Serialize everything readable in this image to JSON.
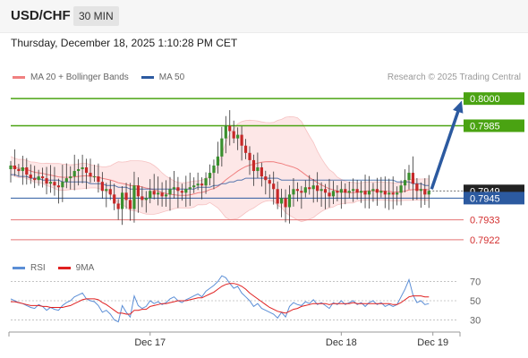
{
  "header": {
    "symbol": "USD/CHF",
    "timeframe": "30 MIN",
    "datetime": "Thursday, December 18, 2025 1:10:28 PM CET",
    "credit": "Research © 2025 Trading Central"
  },
  "legend": {
    "main": [
      {
        "name": "MA 20 + Bollinger Bands",
        "color": "#f08080"
      },
      {
        "name": "MA 50",
        "color": "#2c5aa0"
      }
    ],
    "rsi": [
      {
        "name": "RSI",
        "color": "#5b8ed6"
      },
      {
        "name": "9MA",
        "color": "#e02020"
      }
    ]
  },
  "colors": {
    "up": "#3a8f2e",
    "down": "#c62828",
    "target": "#4aa312",
    "pivot": "#2c5aa0",
    "support": "#e57373",
    "arrow": "#2c5aa0",
    "price_box": "#222222"
  },
  "chart_data": {
    "type": "candlestick",
    "ylim": [
      0.7917,
      0.8007
    ],
    "x_tick_labels": [
      {
        "label": "Dec 17",
        "index": 35
      },
      {
        "label": "Dec 18",
        "index": 83
      },
      {
        "label": "Dec 19",
        "index": 106
      }
    ],
    "levels": [
      {
        "value": 0.8,
        "label": "0.8000",
        "kind": "target"
      },
      {
        "value": 0.7985,
        "label": "0.7985",
        "kind": "target"
      },
      {
        "value": 0.7949,
        "label": "0.7949",
        "kind": "current"
      },
      {
        "value": 0.7945,
        "label": "0.7945",
        "kind": "pivot"
      },
      {
        "value": 0.7933,
        "label": "0.7933",
        "kind": "support"
      },
      {
        "value": 0.7922,
        "label": "0.7922",
        "kind": "support"
      }
    ],
    "forecast_arrow": {
      "from": 0.795,
      "to": 0.7999
    },
    "closes": [
      0.7963,
      0.7961,
      0.796,
      0.7962,
      0.7958,
      0.7956,
      0.7955,
      0.7957,
      0.7956,
      0.7953,
      0.7954,
      0.7952,
      0.7951,
      0.7954,
      0.7956,
      0.7957,
      0.796,
      0.7961,
      0.7962,
      0.7959,
      0.7957,
      0.7957,
      0.7954,
      0.7949,
      0.795,
      0.7947,
      0.7942,
      0.7939,
      0.7948,
      0.7944,
      0.7939,
      0.7952,
      0.7946,
      0.7944,
      0.7945,
      0.7949,
      0.7947,
      0.7948,
      0.7946,
      0.7947,
      0.795,
      0.7951,
      0.7949,
      0.7948,
      0.795,
      0.7951,
      0.7952,
      0.7953,
      0.7952,
      0.7956,
      0.7959,
      0.7963,
      0.7968,
      0.7978,
      0.7985,
      0.7982,
      0.7978,
      0.798,
      0.7974,
      0.797,
      0.7966,
      0.796,
      0.7962,
      0.7957,
      0.7955,
      0.7953,
      0.795,
      0.7942,
      0.7945,
      0.794,
      0.7947,
      0.795,
      0.7949,
      0.7948,
      0.7951,
      0.795,
      0.7952,
      0.7949,
      0.795,
      0.7948,
      0.7946,
      0.7949,
      0.7948,
      0.795,
      0.7948,
      0.7949,
      0.795,
      0.7948,
      0.7949,
      0.7947,
      0.7949,
      0.795,
      0.7948,
      0.7949,
      0.7947,
      0.7948,
      0.7947,
      0.7948,
      0.7952,
      0.7955,
      0.7959,
      0.7953,
      0.7949,
      0.795,
      0.7947,
      0.7949
    ],
    "ma50": [
      0.7958,
      0.7958,
      0.7957,
      0.7957,
      0.7957,
      0.7956,
      0.7956,
      0.7956,
      0.7955,
      0.7955,
      0.7955,
      0.7955,
      0.7955,
      0.7954,
      0.7954,
      0.7954,
      0.7954,
      0.7954,
      0.7954,
      0.7954,
      0.7953,
      0.7953,
      0.7953,
      0.7953,
      0.7952,
      0.7952,
      0.7952,
      0.7951,
      0.7951,
      0.7951,
      0.795,
      0.795,
      0.795,
      0.795,
      0.795,
      0.795,
      0.795,
      0.795,
      0.795,
      0.795,
      0.795,
      0.795,
      0.795,
      0.795,
      0.795,
      0.795,
      0.795,
      0.7951,
      0.7951,
      0.7951,
      0.7951,
      0.7952,
      0.7952,
      0.7953,
      0.7953,
      0.7954,
      0.7954,
      0.7955,
      0.7955,
      0.7956,
      0.7956,
      0.7956,
      0.7956,
      0.7956,
      0.7956,
      0.7956,
      0.7956,
      0.7956,
      0.7955,
      0.7955,
      0.7955,
      0.7955,
      0.7955,
      0.7955,
      0.7955,
      0.7955,
      0.7955,
      0.7955,
      0.7955,
      0.7955,
      0.7955,
      0.7955,
      0.7955,
      0.7955,
      0.7955,
      0.7955,
      0.7955,
      0.7955,
      0.7955,
      0.7955,
      0.7955,
      0.7955,
      0.7955,
      0.7955,
      0.7955,
      0.7955,
      0.7955,
      0.7954,
      0.7954,
      0.7954,
      0.7954,
      0.7953,
      0.7953,
      0.7953,
      0.7952,
      0.7952
    ],
    "rsi": {
      "levels": [
        70,
        50,
        30
      ],
      "ylim": [
        22,
        78
      ],
      "values": [
        52,
        50,
        48,
        47,
        45,
        43,
        42,
        46,
        44,
        40,
        43,
        41,
        40,
        45,
        48,
        50,
        54,
        56,
        58,
        52,
        50,
        49,
        45,
        38,
        40,
        36,
        30,
        28,
        45,
        38,
        33,
        55,
        45,
        42,
        44,
        50,
        47,
        49,
        46,
        48,
        52,
        54,
        50,
        48,
        51,
        53,
        55,
        57,
        54,
        60,
        63,
        66,
        70,
        76,
        74,
        68,
        63,
        65,
        58,
        54,
        50,
        44,
        47,
        42,
        40,
        38,
        36,
        32,
        38,
        33,
        44,
        48,
        46,
        45,
        49,
        47,
        51,
        46,
        48,
        45,
        42,
        48,
        46,
        50,
        46,
        48,
        50,
        46,
        48,
        44,
        48,
        50,
        46,
        48,
        44,
        46,
        44,
        46,
        54,
        62,
        72,
        56,
        48,
        50,
        46,
        47
      ],
      "ma9": [
        49,
        49,
        48,
        47,
        46,
        45,
        45,
        45,
        44,
        44,
        43,
        43,
        43,
        43,
        44,
        45,
        47,
        49,
        51,
        52,
        52,
        52,
        51,
        48,
        46,
        43,
        40,
        37,
        37,
        36,
        36,
        40,
        40,
        41,
        41,
        44,
        45,
        46,
        47,
        47,
        48,
        49,
        50,
        50,
        50,
        51,
        52,
        53,
        53,
        55,
        57,
        59,
        62,
        65,
        67,
        68,
        68,
        67,
        65,
        62,
        58,
        55,
        52,
        49,
        46,
        43,
        41,
        39,
        38,
        37,
        39,
        41,
        42,
        44,
        45,
        46,
        47,
        47,
        47,
        47,
        46,
        47,
        47,
        47,
        47,
        47,
        48,
        47,
        47,
        47,
        47,
        47,
        47,
        47,
        47,
        47,
        46,
        46,
        48,
        51,
        54,
        55,
        55,
        55,
        54,
        54
      ]
    }
  }
}
